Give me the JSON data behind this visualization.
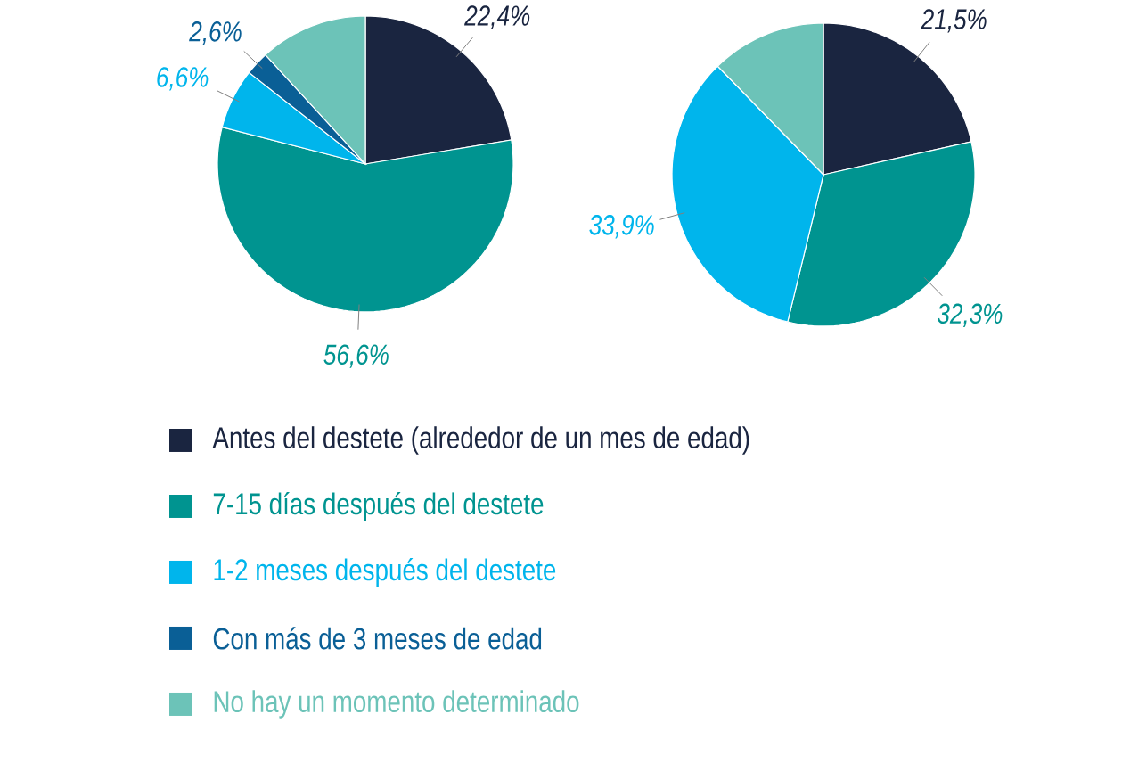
{
  "chart_data": [
    {
      "type": "pie",
      "categories": [
        "Antes del destete (alrededor de un mes de edad)",
        "7-15 días después del destete",
        "1-2 meses después del destete",
        "Con más de 3 meses de edad",
        "No hay un momento determinado"
      ],
      "values": [
        22.4,
        56.6,
        6.6,
        2.6,
        11.8
      ],
      "colors": [
        "#1a2540",
        "#009490",
        "#00b5ec",
        "#0a5f96",
        "#6cc3b8"
      ],
      "value_labels": [
        "22,4%",
        "56,6%",
        "6,6%",
        "2,6%",
        null
      ],
      "legend": "bottom"
    },
    {
      "type": "pie",
      "categories": [
        null,
        null,
        null,
        null,
        null
      ],
      "values": [
        21.5,
        32.3,
        33.9,
        0,
        12.3
      ],
      "colors": [
        "#1a2540",
        "#009490",
        "#00b5ec",
        "#0a5f96",
        "#6cc3b8"
      ],
      "value_labels": [
        "21,5%",
        "32,3%",
        "33,9%",
        null,
        null
      ]
    }
  ]
}
